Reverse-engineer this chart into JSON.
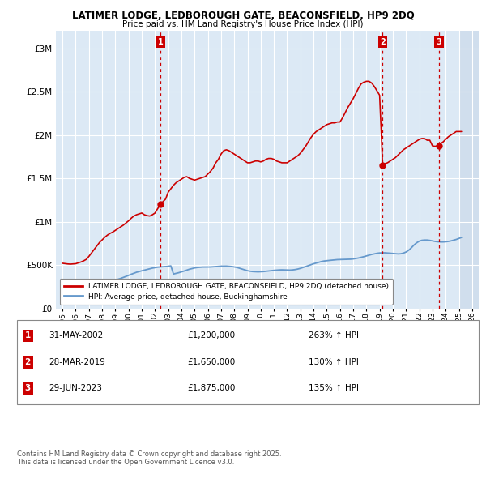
{
  "title": "LATIMER LODGE, LEDBOROUGH GATE, BEACONSFIELD, HP9 2DQ",
  "subtitle": "Price paid vs. HM Land Registry's House Price Index (HPI)",
  "xlim": [
    1994.5,
    2026.5
  ],
  "ylim": [
    0,
    3200000
  ],
  "yticks": [
    0,
    500000,
    1000000,
    1500000,
    2000000,
    2500000,
    3000000
  ],
  "ytick_labels": [
    "£0",
    "£500K",
    "£1M",
    "£1.5M",
    "£2M",
    "£2.5M",
    "£3M"
  ],
  "xticks": [
    1995,
    1996,
    1997,
    1998,
    1999,
    2000,
    2001,
    2002,
    2003,
    2004,
    2005,
    2006,
    2007,
    2008,
    2009,
    2010,
    2011,
    2012,
    2013,
    2014,
    2015,
    2016,
    2017,
    2018,
    2019,
    2020,
    2021,
    2022,
    2023,
    2024,
    2025,
    2026
  ],
  "background_color": "#ffffff",
  "plot_background": "#dce9f5",
  "grid_color": "#ffffff",
  "red_line_color": "#cc0000",
  "blue_line_color": "#6699cc",
  "sale_marker_color": "#cc0000",
  "sale_label_bg": "#cc0000",
  "sale_label_fg": "#ffffff",
  "dashed_line_color": "#cc0000",
  "legend_border_color": "#888888",
  "hatch_color": "#c8d8e8",
  "sales": [
    {
      "num": 1,
      "year": 2002.42,
      "price": 1200000
    },
    {
      "num": 2,
      "year": 2019.23,
      "price": 1650000
    },
    {
      "num": 3,
      "year": 2023.49,
      "price": 1875000
    }
  ],
  "table_data": [
    {
      "num": 1,
      "date": "31-MAY-2002",
      "price": "£1,200,000",
      "hpi": "263% ↑ HPI"
    },
    {
      "num": 2,
      "date": "28-MAR-2019",
      "price": "£1,650,000",
      "hpi": "130% ↑ HPI"
    },
    {
      "num": 3,
      "date": "29-JUN-2023",
      "price": "£1,875,000",
      "hpi": "135% ↑ HPI"
    }
  ],
  "legend_entries": [
    "LATIMER LODGE, LEDBOROUGH GATE, BEACONSFIELD, HP9 2DQ (detached house)",
    "HPI: Average price, detached house, Buckinghamshire"
  ],
  "footer": "Contains HM Land Registry data © Crown copyright and database right 2025.\nThis data is licensed under the Open Government Licence v3.0.",
  "red_x": [
    1995.0,
    1995.1,
    1995.2,
    1995.4,
    1995.6,
    1995.8,
    1996.0,
    1996.2,
    1996.4,
    1996.6,
    1996.8,
    1997.0,
    1997.2,
    1997.4,
    1997.6,
    1997.8,
    1998.0,
    1998.2,
    1998.4,
    1998.6,
    1998.8,
    1999.0,
    1999.2,
    1999.4,
    1999.6,
    1999.8,
    2000.0,
    2000.2,
    2000.4,
    2000.6,
    2000.8,
    2001.0,
    2001.2,
    2001.4,
    2001.6,
    2001.8,
    2002.0,
    2002.2,
    2002.42,
    2002.6,
    2002.8,
    2003.0,
    2003.2,
    2003.4,
    2003.6,
    2003.8,
    2004.0,
    2004.2,
    2004.4,
    2004.6,
    2004.8,
    2005.0,
    2005.2,
    2005.4,
    2005.6,
    2005.8,
    2006.0,
    2006.2,
    2006.4,
    2006.6,
    2006.8,
    2007.0,
    2007.2,
    2007.4,
    2007.6,
    2007.8,
    2008.0,
    2008.2,
    2008.4,
    2008.6,
    2008.8,
    2009.0,
    2009.2,
    2009.4,
    2009.6,
    2009.8,
    2010.0,
    2010.2,
    2010.4,
    2010.6,
    2010.8,
    2011.0,
    2011.2,
    2011.4,
    2011.6,
    2011.8,
    2012.0,
    2012.2,
    2012.4,
    2012.6,
    2012.8,
    2013.0,
    2013.2,
    2013.4,
    2013.6,
    2013.8,
    2014.0,
    2014.2,
    2014.4,
    2014.6,
    2014.8,
    2015.0,
    2015.2,
    2015.4,
    2015.6,
    2015.8,
    2016.0,
    2016.2,
    2016.4,
    2016.6,
    2016.8,
    2017.0,
    2017.2,
    2017.4,
    2017.6,
    2017.8,
    2018.0,
    2018.2,
    2018.4,
    2018.6,
    2018.8,
    2019.0,
    2019.23,
    2019.4,
    2019.6,
    2019.8,
    2020.0,
    2020.2,
    2020.4,
    2020.6,
    2020.8,
    2021.0,
    2021.2,
    2021.4,
    2021.6,
    2021.8,
    2022.0,
    2022.2,
    2022.4,
    2022.6,
    2022.8,
    2023.0,
    2023.2,
    2023.49,
    2023.6,
    2023.8,
    2024.0,
    2024.2,
    2024.4,
    2024.6,
    2024.8,
    2025.0,
    2025.2
  ],
  "red_y": [
    520000,
    518000,
    515000,
    512000,
    510000,
    512000,
    515000,
    525000,
    535000,
    548000,
    565000,
    600000,
    640000,
    680000,
    720000,
    760000,
    790000,
    820000,
    845000,
    865000,
    880000,
    900000,
    920000,
    940000,
    960000,
    985000,
    1010000,
    1040000,
    1065000,
    1080000,
    1090000,
    1100000,
    1080000,
    1070000,
    1065000,
    1080000,
    1100000,
    1150000,
    1200000,
    1230000,
    1260000,
    1340000,
    1380000,
    1420000,
    1450000,
    1470000,
    1490000,
    1510000,
    1520000,
    1500000,
    1490000,
    1480000,
    1490000,
    1500000,
    1510000,
    1520000,
    1550000,
    1580000,
    1620000,
    1680000,
    1720000,
    1780000,
    1820000,
    1830000,
    1820000,
    1800000,
    1780000,
    1760000,
    1740000,
    1720000,
    1700000,
    1680000,
    1680000,
    1690000,
    1700000,
    1700000,
    1690000,
    1700000,
    1720000,
    1730000,
    1730000,
    1720000,
    1700000,
    1690000,
    1680000,
    1680000,
    1680000,
    1700000,
    1720000,
    1740000,
    1760000,
    1790000,
    1830000,
    1870000,
    1920000,
    1970000,
    2010000,
    2040000,
    2060000,
    2080000,
    2100000,
    2120000,
    2130000,
    2140000,
    2140000,
    2150000,
    2150000,
    2200000,
    2260000,
    2320000,
    2370000,
    2420000,
    2480000,
    2540000,
    2590000,
    2610000,
    2620000,
    2620000,
    2600000,
    2560000,
    2510000,
    2460000,
    1650000,
    1670000,
    1680000,
    1700000,
    1720000,
    1740000,
    1770000,
    1800000,
    1830000,
    1850000,
    1870000,
    1890000,
    1910000,
    1930000,
    1950000,
    1960000,
    1960000,
    1940000,
    1940000,
    1875000,
    1870000,
    1880000,
    1900000,
    1920000,
    1950000,
    1980000,
    2000000,
    2020000,
    2040000,
    2040000,
    2040000
  ],
  "blue_x": [
    1995.0,
    1995.2,
    1995.4,
    1995.6,
    1995.8,
    1996.0,
    1996.2,
    1996.4,
    1996.6,
    1996.8,
    1997.0,
    1997.2,
    1997.4,
    1997.6,
    1997.8,
    1998.0,
    1998.2,
    1998.4,
    1998.6,
    1998.8,
    1999.0,
    1999.2,
    1999.4,
    1999.6,
    1999.8,
    2000.0,
    2000.2,
    2000.4,
    2000.6,
    2000.8,
    2001.0,
    2001.2,
    2001.4,
    2001.6,
    2001.8,
    2002.0,
    2002.2,
    2002.4,
    2002.6,
    2002.8,
    2003.0,
    2003.2,
    2003.4,
    2003.6,
    2003.8,
    2004.0,
    2004.2,
    2004.4,
    2004.6,
    2004.8,
    2005.0,
    2005.2,
    2005.4,
    2005.6,
    2005.8,
    2006.0,
    2006.2,
    2006.4,
    2006.6,
    2006.8,
    2007.0,
    2007.2,
    2007.4,
    2007.6,
    2007.8,
    2008.0,
    2008.2,
    2008.4,
    2008.6,
    2008.8,
    2009.0,
    2009.2,
    2009.4,
    2009.6,
    2009.8,
    2010.0,
    2010.2,
    2010.4,
    2010.6,
    2010.8,
    2011.0,
    2011.2,
    2011.4,
    2011.6,
    2011.8,
    2012.0,
    2012.2,
    2012.4,
    2012.6,
    2012.8,
    2013.0,
    2013.2,
    2013.4,
    2013.6,
    2013.8,
    2014.0,
    2014.2,
    2014.4,
    2014.6,
    2014.8,
    2015.0,
    2015.2,
    2015.4,
    2015.6,
    2015.8,
    2016.0,
    2016.2,
    2016.4,
    2016.6,
    2016.8,
    2017.0,
    2017.2,
    2017.4,
    2017.6,
    2017.8,
    2018.0,
    2018.2,
    2018.4,
    2018.6,
    2018.8,
    2019.0,
    2019.2,
    2019.4,
    2019.6,
    2019.8,
    2020.0,
    2020.2,
    2020.4,
    2020.6,
    2020.8,
    2021.0,
    2021.2,
    2021.4,
    2021.6,
    2021.8,
    2022.0,
    2022.2,
    2022.4,
    2022.6,
    2022.8,
    2023.0,
    2023.2,
    2023.4,
    2023.6,
    2023.8,
    2024.0,
    2024.2,
    2024.4,
    2024.6,
    2024.8,
    2025.0,
    2025.2
  ],
  "blue_y": [
    160000,
    163000,
    166000,
    170000,
    175000,
    181000,
    188000,
    196000,
    205000,
    215000,
    226000,
    238000,
    251000,
    264000,
    276000,
    287000,
    296000,
    304000,
    311000,
    318000,
    326000,
    335000,
    345000,
    356000,
    368000,
    381000,
    393000,
    405000,
    416000,
    425000,
    433000,
    441000,
    449000,
    457000,
    464000,
    470000,
    475000,
    478000,
    480000,
    482000,
    485000,
    490000,
    396000,
    403000,
    411000,
    420000,
    430000,
    441000,
    451000,
    459000,
    466000,
    471000,
    474000,
    476000,
    476000,
    476000,
    477000,
    479000,
    482000,
    485000,
    487000,
    488000,
    488000,
    486000,
    483000,
    478000,
    472000,
    463000,
    453000,
    443000,
    434000,
    428000,
    424000,
    422000,
    421000,
    422000,
    424000,
    427000,
    431000,
    435000,
    438000,
    441000,
    443000,
    444000,
    443000,
    441000,
    441000,
    443000,
    447000,
    453000,
    461000,
    471000,
    482000,
    493000,
    504000,
    514000,
    523000,
    532000,
    540000,
    546000,
    550000,
    553000,
    556000,
    559000,
    562000,
    563000,
    564000,
    565000,
    566000,
    567000,
    570000,
    575000,
    581000,
    588000,
    596000,
    605000,
    614000,
    622000,
    629000,
    635000,
    639000,
    641000,
    641000,
    639000,
    636000,
    633000,
    630000,
    628000,
    630000,
    637000,
    650000,
    670000,
    698000,
    730000,
    756000,
    775000,
    785000,
    788000,
    788000,
    784000,
    778000,
    772000,
    768000,
    766000,
    766000,
    768000,
    772000,
    778000,
    786000,
    795000,
    806000,
    818000
  ]
}
